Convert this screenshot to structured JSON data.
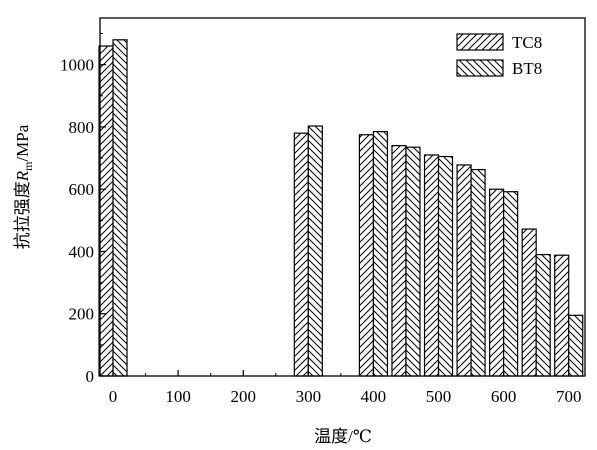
{
  "chart_data": {
    "type": "bar",
    "x": [
      0,
      300,
      400,
      450,
      500,
      550,
      600,
      650,
      700
    ],
    "series": [
      {
        "name": "TC8",
        "values": [
          1060,
          780,
          775,
          740,
          710,
          678,
          600,
          472,
          388
        ]
      },
      {
        "name": "BT8",
        "values": [
          1080,
          803,
          785,
          735,
          705,
          663,
          592,
          390,
          195
        ]
      }
    ],
    "xlabel": "温度/℃",
    "ylabel": "抗拉强度",
    "ylabel_symbol": "R",
    "ylabel_subscript": "m",
    "ylabel_unit": "/MPa",
    "xlim": [
      -20,
      725
    ],
    "ylim": [
      0,
      1150
    ],
    "xticks": [
      0,
      100,
      200,
      300,
      400,
      500,
      600,
      700
    ],
    "yticks": [
      0,
      200,
      400,
      600,
      800,
      1000
    ],
    "legend_position": "top-right",
    "grid": false
  }
}
